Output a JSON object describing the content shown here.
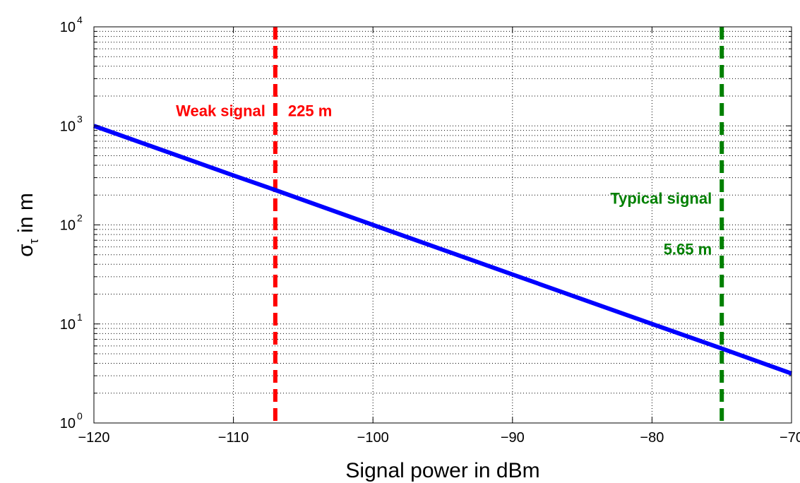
{
  "chart_data": {
    "type": "line",
    "xlabel": "Signal power in dBm",
    "ylabel_main": "σ",
    "ylabel_sub": "τ",
    "ylabel_rest": " in m",
    "xlim": [
      -120,
      -70
    ],
    "ylim": [
      1,
      10000
    ],
    "yscale": "log",
    "grid": true,
    "xticks": [
      -120,
      -110,
      -100,
      -90,
      -80,
      -70
    ],
    "xtick_labels": [
      "−120",
      "−110",
      "−100",
      "−90",
      "−80",
      "−70"
    ],
    "yticks": [
      1,
      10,
      100,
      1000,
      10000
    ],
    "ytick_bases": [
      "10",
      "10",
      "10",
      "10",
      "10"
    ],
    "ytick_exponents": [
      "0",
      "1",
      "2",
      "3",
      "4"
    ],
    "series": [
      {
        "color": "#0000ff",
        "x": [
          -120,
          -110,
          -107,
          -100,
          -90,
          -80,
          -75,
          -70
        ],
        "y": [
          1000,
          316,
          225,
          100,
          31.6,
          10,
          5.65,
          3.16
        ]
      }
    ],
    "vlines": [
      {
        "x": -107,
        "color": "#ff0000"
      },
      {
        "x": -75,
        "color": "#008000"
      }
    ],
    "annotations": [
      {
        "text": "Weak signal",
        "x": -107,
        "y": 1000,
        "side": "left",
        "color": "#ff0000"
      },
      {
        "text": "225 m",
        "x": -107,
        "y": 1000,
        "side": "right",
        "color": "#ff0000"
      },
      {
        "text": "Typical signal",
        "x": -75,
        "y": 130,
        "side": "left",
        "color": "#008000"
      },
      {
        "text": "5.65 m",
        "x": -75,
        "y": 40,
        "side": "left",
        "color": "#008000"
      }
    ]
  }
}
